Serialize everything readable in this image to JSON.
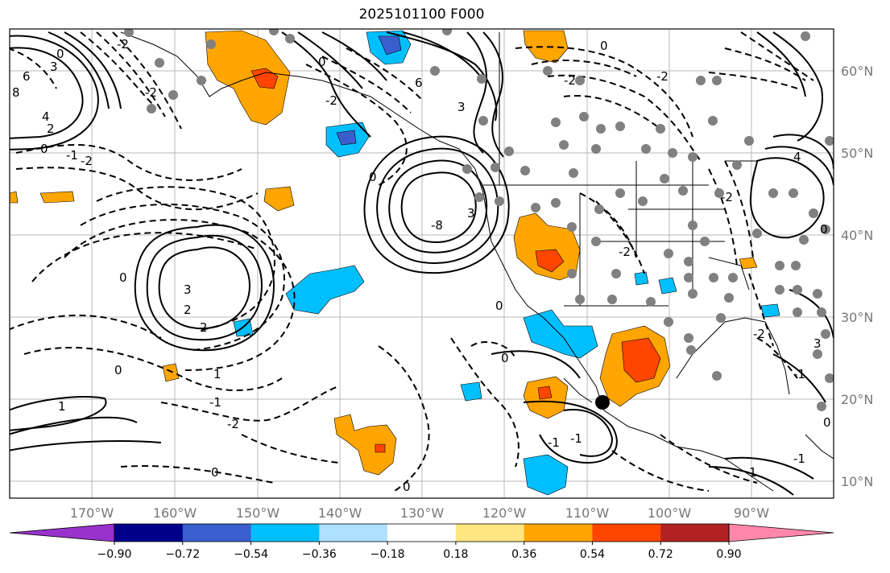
{
  "title": "2025101100 F000",
  "lon_labels": [
    "170°W",
    "160°W",
    "150°W",
    "140°W",
    "130°W",
    "120°W",
    "110°W",
    "100°W",
    "90°W"
  ],
  "lat_labels": [
    "60°N",
    "50°N",
    "40°N",
    "30°N",
    "20°N",
    "10°N"
  ],
  "colorbar": {
    "tick_labels": [
      "−0.90",
      "−0.72",
      "−0.54",
      "−0.36",
      "−0.18",
      "0.18",
      "0.36",
      "0.54",
      "0.72",
      "0.90"
    ],
    "colors": [
      "#9932cc",
      "#00008b",
      "#3a5fcd",
      "#00bfff",
      "#b0e0ff",
      "#ffffff",
      "#ffe680",
      "#ffa500",
      "#ff4500",
      "#b22222",
      "#ff88aa"
    ]
  },
  "contour_labels": [
    "6",
    "3",
    "0",
    "8",
    "4",
    "2",
    "0",
    "-1",
    "-2",
    "0",
    "3",
    "2",
    "2",
    "0",
    "1",
    "-1",
    "1",
    "-2",
    "0",
    "0",
    "6",
    "3",
    "-8",
    "0",
    "3",
    "0",
    "-2",
    "0",
    "-1",
    "-1",
    "0",
    "-2",
    "0",
    "-2",
    "4",
    "0",
    "-2",
    "-2",
    "-2",
    "1",
    "-1",
    "-1",
    "3",
    "0",
    "-2",
    "-2"
  ],
  "colors": {
    "accent_orange": "#ffa500",
    "accent_red": "#ff4500",
    "accent_blue": "#00bfff",
    "accent_lightblue": "#b0e0ff",
    "accent_darkblue": "#3a5fcd",
    "station_gray": "#808080"
  }
}
